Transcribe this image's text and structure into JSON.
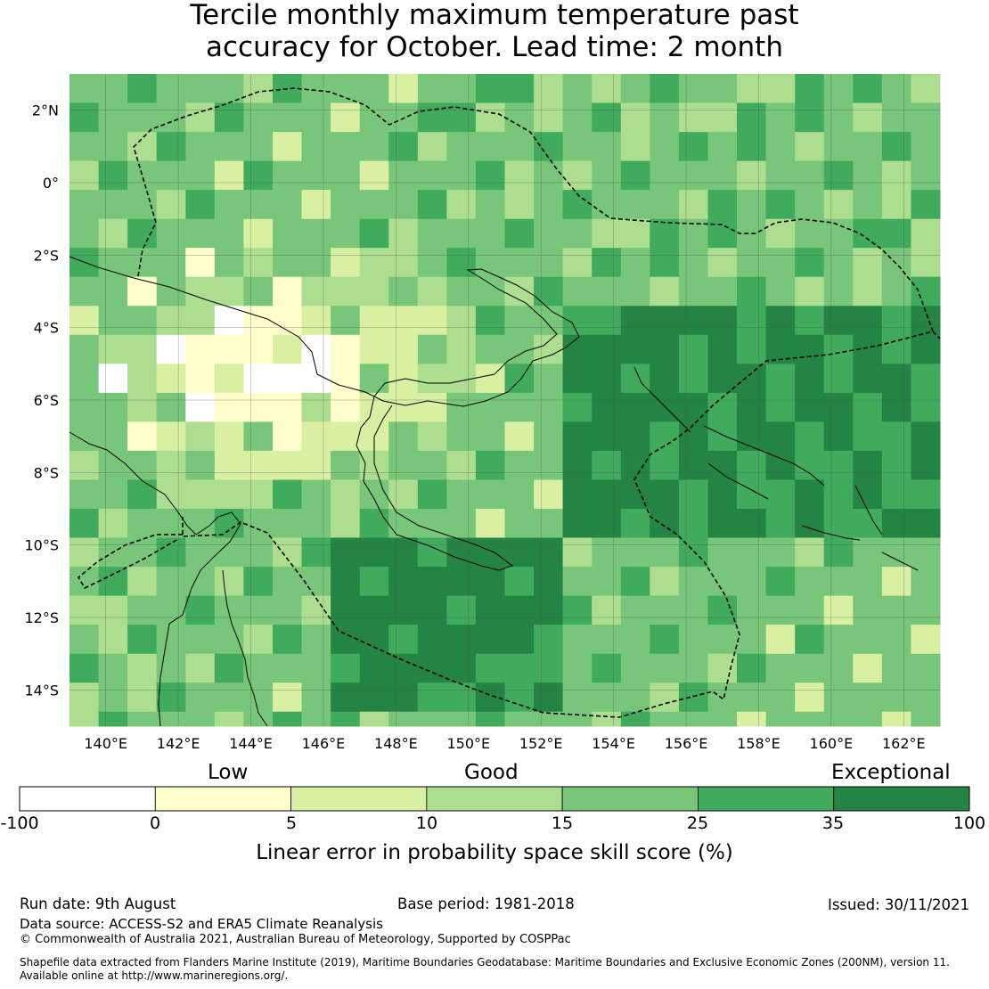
{
  "title": {
    "line1": "Tercile monthly maximum temperature past",
    "line2": "accuracy for October. Lead time: 2 month"
  },
  "map": {
    "lon_labels": [
      "140°E",
      "142°E",
      "144°E",
      "146°E",
      "148°E",
      "150°E",
      "152°E",
      "154°E",
      "156°E",
      "158°E",
      "160°E",
      "162°E"
    ],
    "lon_values": [
      140,
      142,
      144,
      146,
      148,
      150,
      152,
      154,
      156,
      158,
      160,
      162
    ],
    "lat_labels": [
      "2°N",
      "0°",
      "2°S",
      "4°S",
      "6°S",
      "8°S",
      "10°S",
      "12°S",
      "14°S"
    ],
    "lat_values": [
      2,
      0,
      -2,
      -4,
      -6,
      -8,
      -10,
      -12,
      -14
    ],
    "extent": {
      "lon_min": 139,
      "lon_max": 163,
      "lat_min": -15,
      "lat_max": 3
    },
    "grid_lines": true,
    "grid_cell_deg": 0.8,
    "boundary_style": "dashed black (maritime EEZ boundaries)",
    "coastline_style": "thin black"
  },
  "colorbar": {
    "categories": [
      {
        "label": "Low",
        "near": 5
      },
      {
        "label": "Good",
        "near": 15
      },
      {
        "label": "Exceptional",
        "near": 50
      }
    ],
    "bins": [
      {
        "from": -100,
        "to": 0,
        "color": "#ffffff"
      },
      {
        "from": 0,
        "to": 5,
        "color": "#ffffcc"
      },
      {
        "from": 5,
        "to": 10,
        "color": "#d9f0a3"
      },
      {
        "from": 10,
        "to": 15,
        "color": "#addd8e"
      },
      {
        "from": 15,
        "to": 25,
        "color": "#78c679"
      },
      {
        "from": 25,
        "to": 35,
        "color": "#41ab5d"
      },
      {
        "from": 35,
        "to": 100,
        "color": "#238443"
      }
    ],
    "ticks": [
      "-100",
      "0",
      "5",
      "10",
      "15",
      "25",
      "35",
      "100"
    ],
    "label": "Linear error in probability space skill score (%)"
  },
  "footer": {
    "run_date": "Run date: 9th August",
    "base_period": "Base period: 1981-2018",
    "issued": "Issued: 30/11/2021",
    "data_source": "Data source: ACCESS-S2 and ERA5 Climate Reanalysis",
    "copyright": "© Commonwealth of Australia 2021, Australian Bureau of Meteorology, Supported by COSPPac",
    "shapefile_line1": "Shapefile data extracted from Flanders Marine Institute (2019), Maritime Boundaries Geodatabase: Maritime Boundaries and Exclusive Economic Zones (200NM), version 11.",
    "shapefile_line2": "Available online at http://www.marineregions.org/."
  }
}
